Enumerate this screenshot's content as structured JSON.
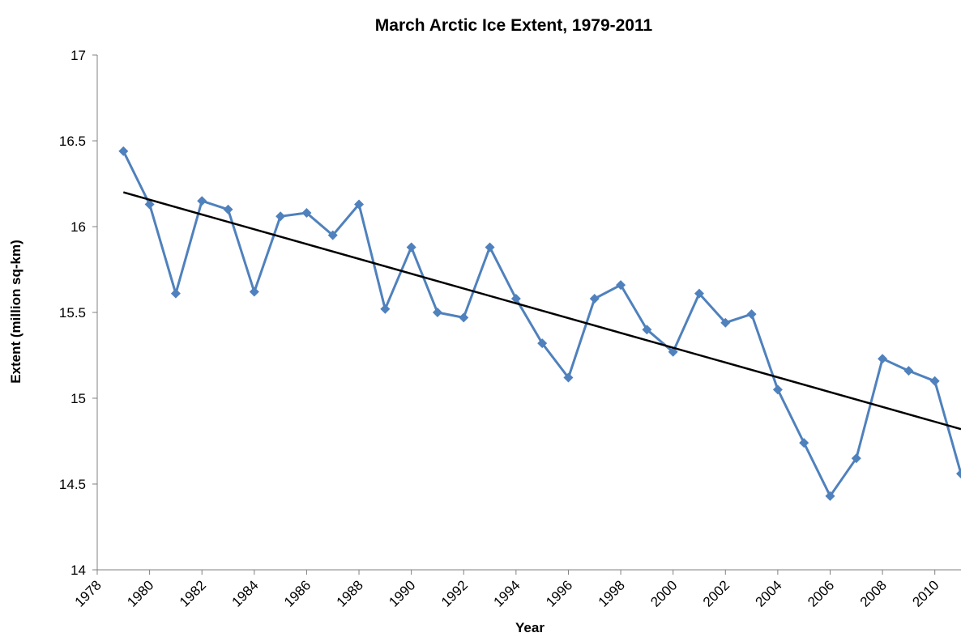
{
  "chart_data": {
    "type": "line",
    "title": "March Arctic Ice Extent, 1979-2011",
    "xlabel": "Year",
    "ylabel": "Extent (million sq-km)",
    "xlim": [
      1978,
      2011
    ],
    "ylim": [
      14,
      17
    ],
    "x_ticks": [
      1978,
      1980,
      1982,
      1984,
      1986,
      1988,
      1990,
      1992,
      1994,
      1996,
      1998,
      2000,
      2002,
      2004,
      2006,
      2008,
      2010
    ],
    "y_ticks": [
      14,
      14.5,
      15,
      15.5,
      16,
      16.5,
      17
    ],
    "grid": false,
    "legend": "none",
    "series": [
      {
        "x": [
          1979,
          1980,
          1981,
          1982,
          1983,
          1984,
          1985,
          1986,
          1987,
          1988,
          1989,
          1990,
          1991,
          1992,
          1993,
          1994,
          1995,
          1996,
          1997,
          1998,
          1999,
          2000,
          2001,
          2002,
          2003,
          2004,
          2005,
          2006,
          2007,
          2008,
          2009,
          2010,
          2011
        ],
        "values": [
          16.44,
          16.13,
          15.61,
          16.15,
          16.1,
          15.62,
          16.06,
          16.08,
          15.95,
          16.13,
          15.52,
          15.88,
          15.5,
          15.47,
          15.88,
          15.58,
          15.32,
          15.12,
          15.58,
          15.66,
          15.4,
          15.27,
          15.61,
          15.44,
          15.49,
          15.05,
          14.74,
          14.43,
          14.65,
          15.23,
          15.16,
          15.1,
          14.56
        ],
        "color": "#4f81bd",
        "marker": "diamond"
      },
      {
        "kind": "linear-trend",
        "x": [
          1979,
          2011
        ],
        "values": [
          16.2,
          14.82
        ],
        "color": "#000000"
      }
    ]
  }
}
